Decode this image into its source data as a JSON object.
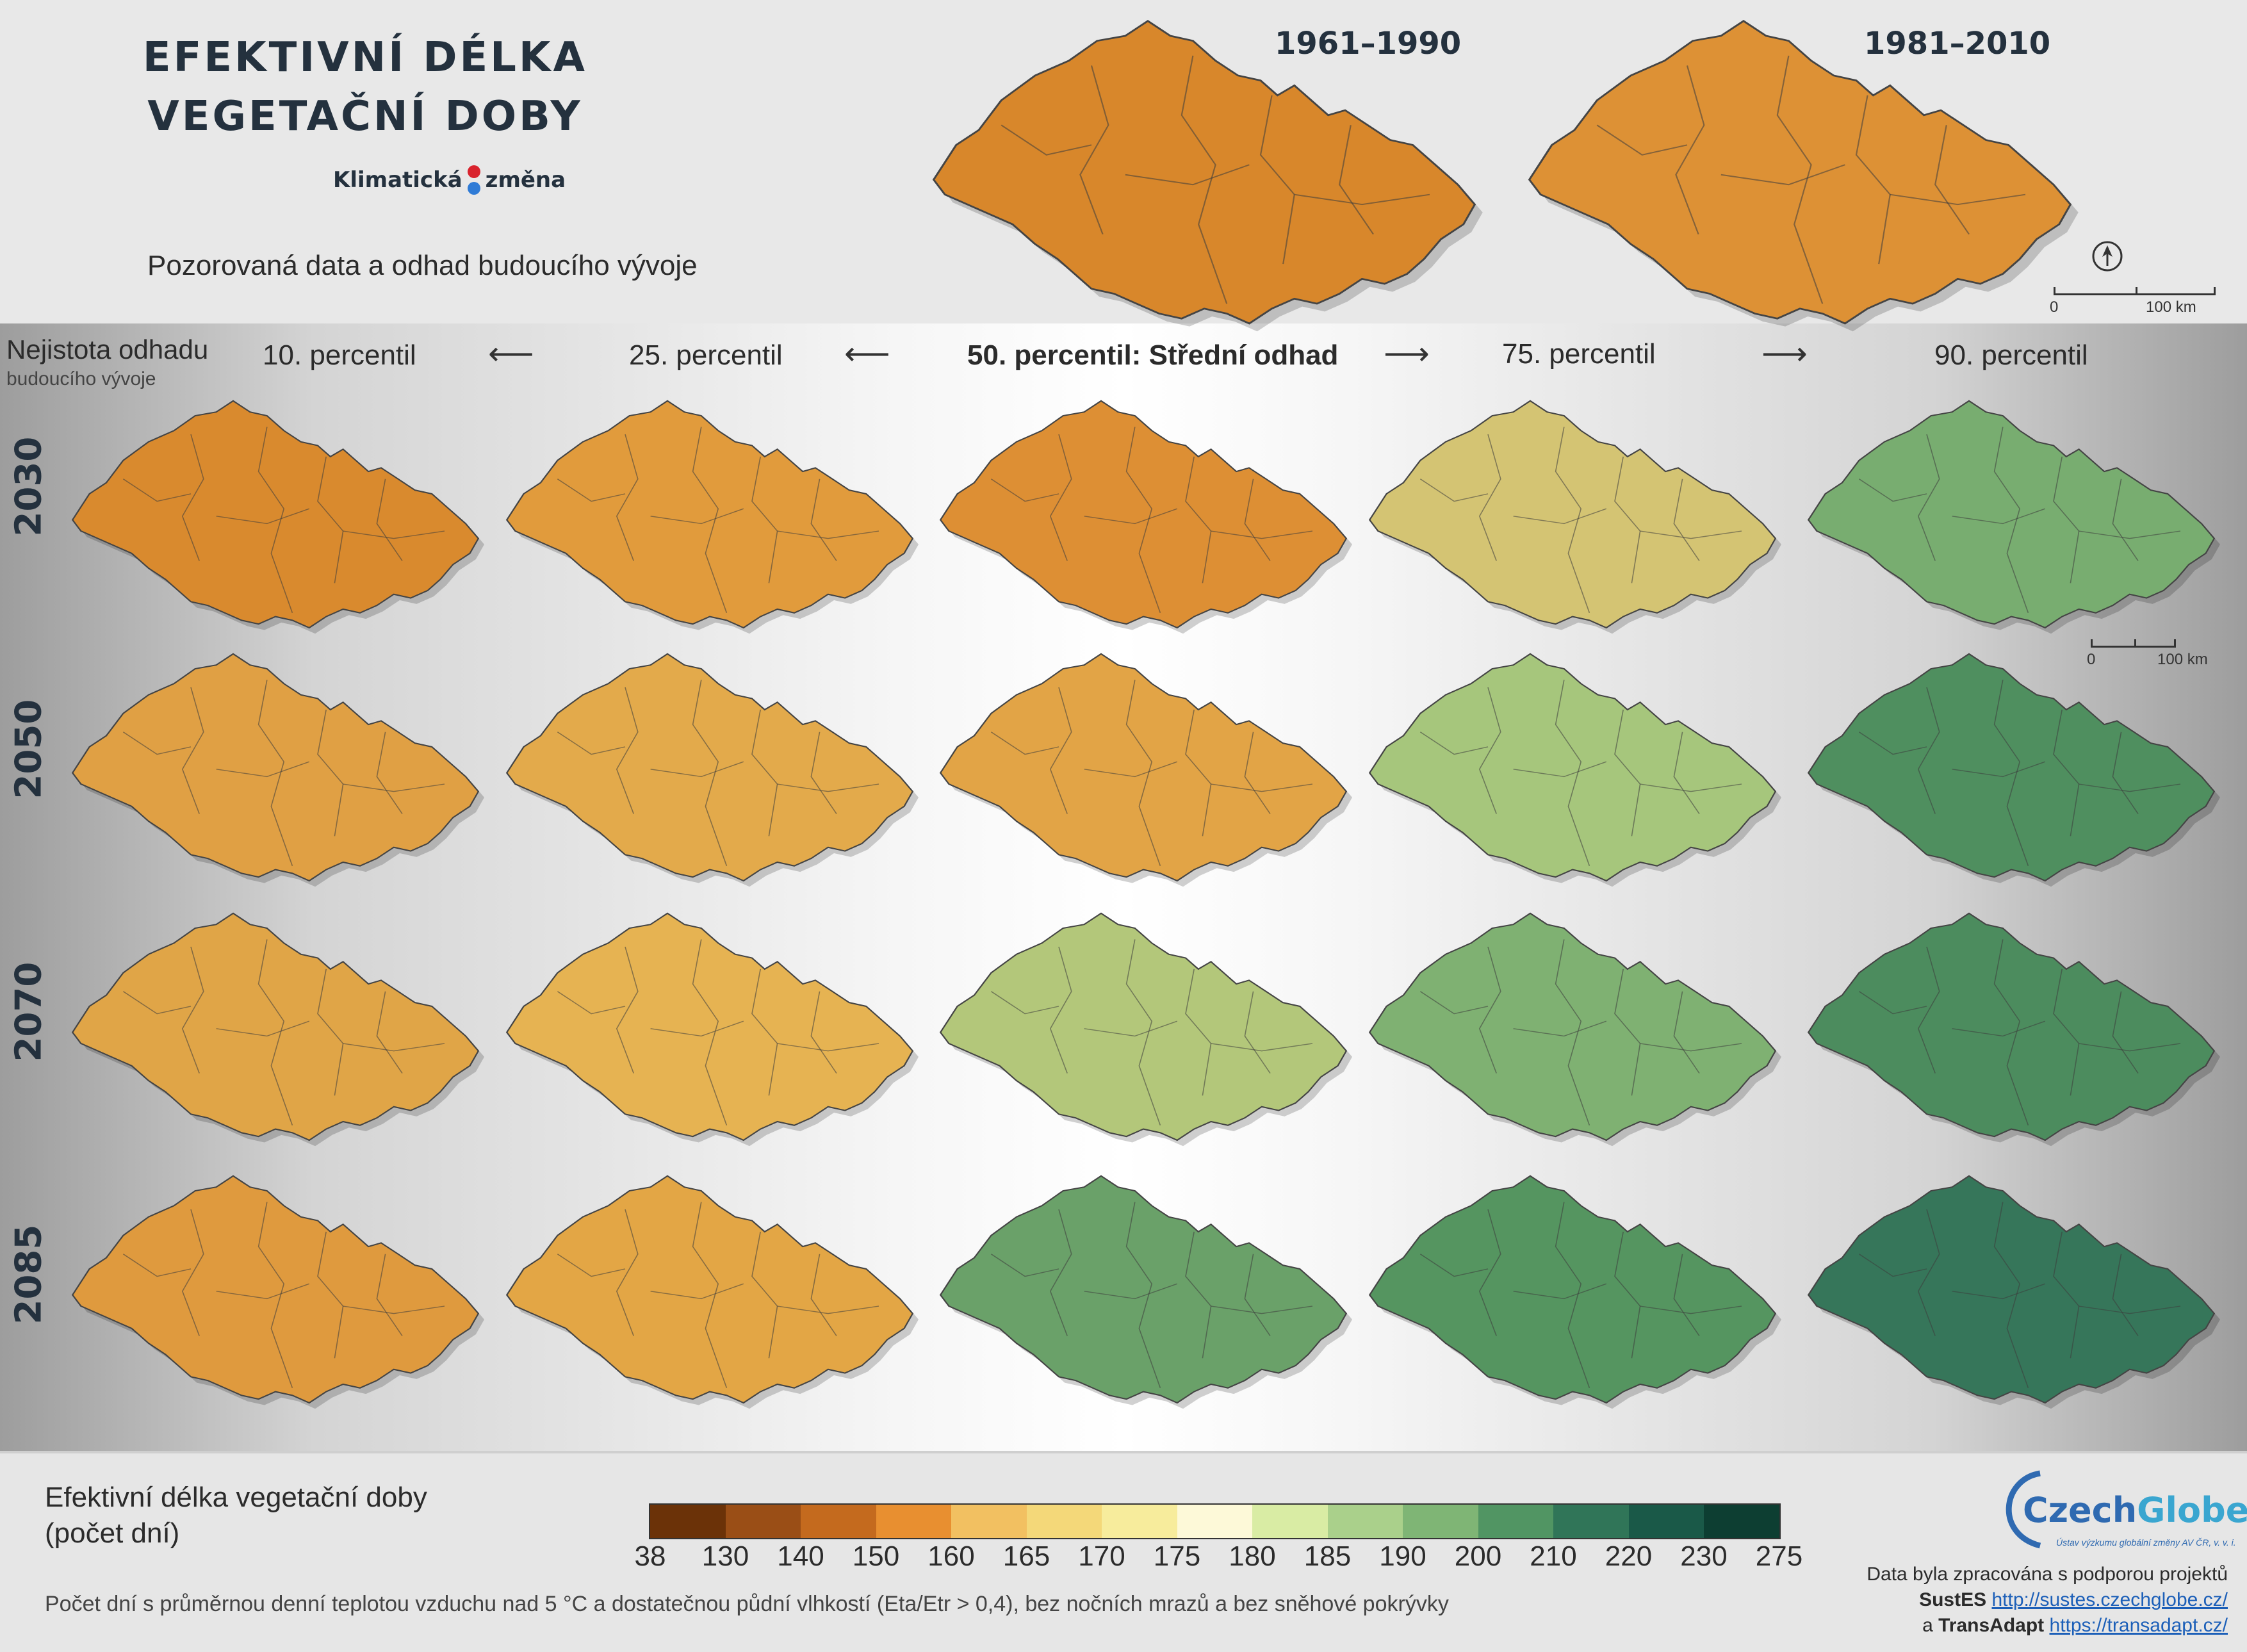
{
  "header": {
    "title_line1": "EFEKTIVNÍ DÉLKA",
    "title_line2": "VEGETAČNÍ DOBY",
    "logo_left": "Klimatická",
    "logo_right": "změna",
    "subtitle": "Pozorovaná data a odhad budoucího vývoje",
    "periods": [
      "1961–1990",
      "1981–2010"
    ]
  },
  "scale": {
    "zero": "0",
    "km": "100 km"
  },
  "uncertainty": {
    "line1": "Nejistota odhadu",
    "line2": "budoucího vývoje"
  },
  "percentiles": [
    "10. percentil",
    "25. percentil",
    "50. percentil: Střední odhad",
    "75. percentil",
    "90. percentil"
  ],
  "years": [
    "2030",
    "2050",
    "2070",
    "2085"
  ],
  "legend": {
    "title_line1": "Efektivní délka vegetační doby",
    "title_line2": "(počet dní)",
    "colors": [
      "#6b3208",
      "#9a4e16",
      "#c46a1e",
      "#e88f30",
      "#f2c061",
      "#f4d879",
      "#f7ec9c",
      "#fdf9d8",
      "#d9eca4",
      "#aad08b",
      "#7fb575",
      "#519563",
      "#307558",
      "#1a5948",
      "#0d3e32"
    ],
    "ticks": [
      "38",
      "130",
      "140",
      "150",
      "160",
      "165",
      "170",
      "175",
      "180",
      "185",
      "190",
      "200",
      "210",
      "220",
      "230",
      "275"
    ],
    "footnote": "Počet dní s průměrnou denní teplotou vzduchu nad 5 °C a dostatečnou půdní vlhkostí (Eta/Etr > 0,4), bez nočních mrazů a bez sněhové pokrývky"
  },
  "credits": {
    "logo_name_a": "Czech",
    "logo_name_b": "Globe",
    "logo_sub": "Ústav výzkumu globální změny AV ČR, v. v. i.",
    "line1": "Data byla zpracována s podporou projektů",
    "proj1": "SustES",
    "url1": "http://sustes.czechglobe.cz/",
    "and": "a",
    "proj2": "TransAdapt",
    "url2": "https://transadapt.cz/"
  },
  "maps": {
    "historical": [
      {
        "period": "1961–1990",
        "fill": "#d8872b"
      },
      {
        "period": "1981–2010",
        "fill": "#dd9135"
      }
    ],
    "grid": [
      [
        "#d98a2e",
        "#e19b3c",
        "#dd8f34",
        "#d4c473",
        "#78ad70"
      ],
      [
        "#e0a044",
        "#e3aa4b",
        "#e2a446",
        "#a6c67c",
        "#4f8f5f"
      ],
      [
        "#e0a547",
        "#e6b352",
        "#b3c77a",
        "#7fb172",
        "#4c8c5e"
      ],
      [
        "#df9a3e",
        "#e3a645",
        "#6aa169",
        "#559560",
        "#36765a"
      ]
    ]
  }
}
